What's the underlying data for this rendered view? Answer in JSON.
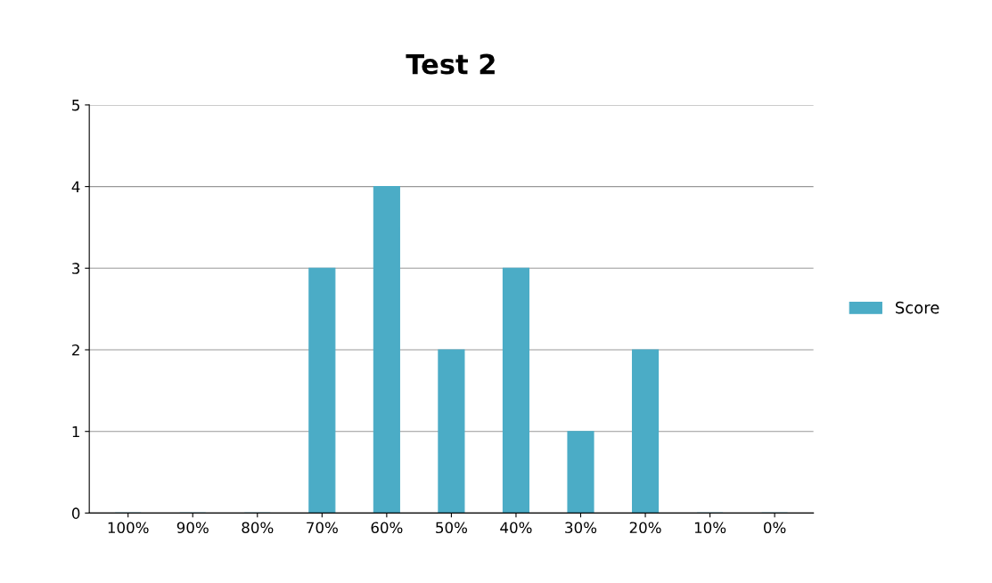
{
  "chart_data": {
    "type": "bar",
    "title": "Test 2",
    "categories": [
      "100%",
      "90%",
      "80%",
      "70%",
      "60%",
      "50%",
      "40%",
      "30%",
      "20%",
      "10%",
      "0%"
    ],
    "series": [
      {
        "name": "Score",
        "color": "#4bacc6",
        "values": [
          0,
          0,
          0,
          3,
          4,
          2,
          3,
          1,
          2,
          0,
          0
        ]
      }
    ],
    "ylim": [
      0,
      5
    ],
    "yticks": [
      0,
      1,
      2,
      3,
      4,
      5
    ],
    "grid": "y",
    "legend": "right"
  }
}
